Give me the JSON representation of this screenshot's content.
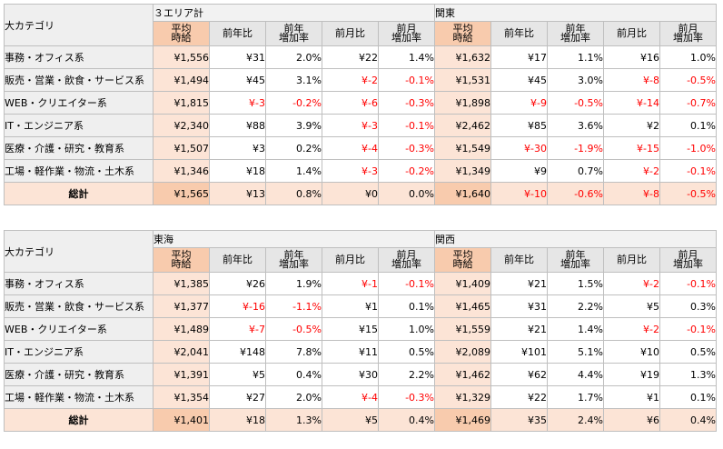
{
  "col_header": "大カテゴリ",
  "sub_headers": {
    "avg": "平均\n時給",
    "yoy": "前年比",
    "yoy_rate": "前年\n増加率",
    "mom": "前月比",
    "mom_rate": "前月\n増加率"
  },
  "categories": [
    "事務・オフィス系",
    "販売・営業・飲食・サービス系",
    "WEB・クリエイター系",
    "IT・エンジニア系",
    "医療・介護・研究・教育系",
    "工場・軽作業・物流・土木系",
    "総計"
  ],
  "tables": [
    {
      "regions": [
        {
          "name": "３エリア計",
          "rows": [
            [
              "¥1,556",
              "¥31",
              "2.0%",
              "¥22",
              "1.4%"
            ],
            [
              "¥1,494",
              "¥45",
              "3.1%",
              "¥-2",
              "-0.1%"
            ],
            [
              "¥1,815",
              "¥-3",
              "-0.2%",
              "¥-6",
              "-0.3%"
            ],
            [
              "¥2,340",
              "¥88",
              "3.9%",
              "¥-3",
              "-0.1%"
            ],
            [
              "¥1,507",
              "¥3",
              "0.2%",
              "¥-4",
              "-0.3%"
            ],
            [
              "¥1,346",
              "¥18",
              "1.4%",
              "¥-3",
              "-0.2%"
            ],
            [
              "¥1,565",
              "¥13",
              "0.8%",
              "¥0",
              "0.0%"
            ]
          ]
        },
        {
          "name": "関東",
          "rows": [
            [
              "¥1,632",
              "¥17",
              "1.1%",
              "¥16",
              "1.0%"
            ],
            [
              "¥1,531",
              "¥45",
              "3.0%",
              "¥-8",
              "-0.5%"
            ],
            [
              "¥1,898",
              "¥-9",
              "-0.5%",
              "¥-14",
              "-0.7%"
            ],
            [
              "¥2,462",
              "¥85",
              "3.6%",
              "¥2",
              "0.1%"
            ],
            [
              "¥1,549",
              "¥-30",
              "-1.9%",
              "¥-15",
              "-1.0%"
            ],
            [
              "¥1,349",
              "¥9",
              "0.7%",
              "¥-2",
              "-0.1%"
            ],
            [
              "¥1,640",
              "¥-10",
              "-0.6%",
              "¥-8",
              "-0.5%"
            ]
          ]
        }
      ]
    },
    {
      "regions": [
        {
          "name": "東海",
          "rows": [
            [
              "¥1,385",
              "¥26",
              "1.9%",
              "¥-1",
              "-0.1%"
            ],
            [
              "¥1,377",
              "¥-16",
              "-1.1%",
              "¥1",
              "0.1%"
            ],
            [
              "¥1,489",
              "¥-7",
              "-0.5%",
              "¥15",
              "1.0%"
            ],
            [
              "¥2,041",
              "¥148",
              "7.8%",
              "¥11",
              "0.5%"
            ],
            [
              "¥1,391",
              "¥5",
              "0.4%",
              "¥30",
              "2.2%"
            ],
            [
              "¥1,354",
              "¥27",
              "2.0%",
              "¥-4",
              "-0.3%"
            ],
            [
              "¥1,401",
              "¥18",
              "1.3%",
              "¥5",
              "0.4%"
            ]
          ]
        },
        {
          "name": "関西",
          "rows": [
            [
              "¥1,409",
              "¥21",
              "1.5%",
              "¥-2",
              "-0.1%"
            ],
            [
              "¥1,465",
              "¥31",
              "2.2%",
              "¥5",
              "0.3%"
            ],
            [
              "¥1,559",
              "¥21",
              "1.4%",
              "¥-2",
              "-0.1%"
            ],
            [
              "¥2,089",
              "¥101",
              "5.1%",
              "¥10",
              "0.5%"
            ],
            [
              "¥1,462",
              "¥62",
              "4.4%",
              "¥19",
              "1.3%"
            ],
            [
              "¥1,329",
              "¥22",
              "1.7%",
              "¥1",
              "0.1%"
            ],
            [
              "¥1,469",
              "¥35",
              "2.4%",
              "¥6",
              "0.4%"
            ]
          ]
        }
      ]
    }
  ]
}
